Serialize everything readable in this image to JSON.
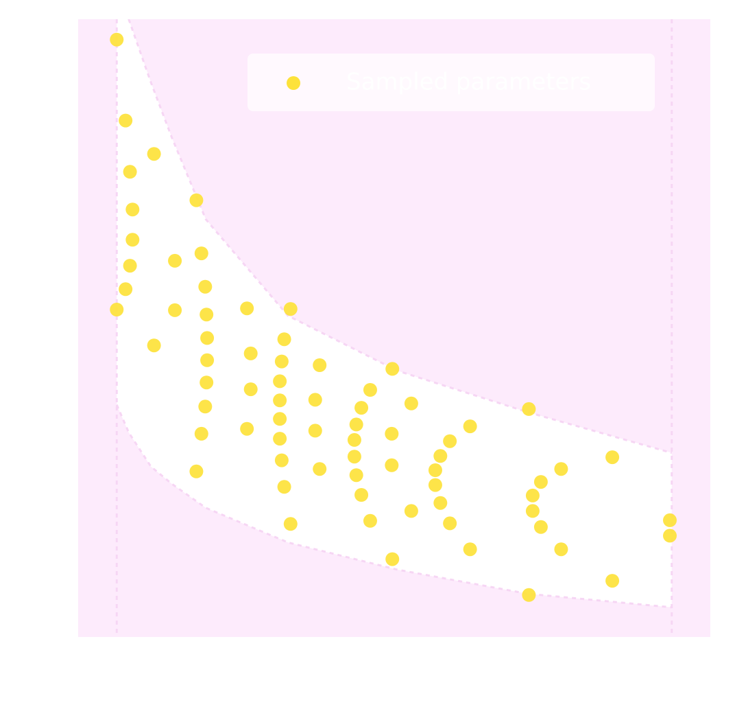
{
  "chart_data": {
    "type": "scatter",
    "xlim": [
      0,
      1
    ],
    "ylim": [
      0,
      1
    ],
    "xticks": [],
    "yticks": [],
    "grid": false,
    "background": "#fdebfc",
    "legend": "upper right",
    "band": {
      "color": "#ffffff",
      "edge_color": "#f6d6f4",
      "x": [
        0.061,
        0.08,
        0.115,
        0.148,
        0.202,
        0.332,
        0.505,
        0.711,
        0.939
      ],
      "upper": [
        1.064,
        1.0,
        0.898,
        0.809,
        0.676,
        0.52,
        0.431,
        0.364,
        0.298
      ],
      "lower": [
        0.376,
        0.331,
        0.276,
        0.248,
        0.209,
        0.153,
        0.109,
        0.07,
        0.048
      ]
    },
    "vlines": [
      0.061,
      0.939
    ],
    "series": [
      {
        "name": "Sampled parameters",
        "color": "#fde23a",
        "x": [
          0.061,
          0.075,
          0.082,
          0.086,
          0.086,
          0.082,
          0.075,
          0.061,
          0.12,
          0.12,
          0.153,
          0.153,
          0.187,
          0.195,
          0.201,
          0.203,
          0.204,
          0.204,
          0.203,
          0.201,
          0.195,
          0.187,
          0.267,
          0.273,
          0.273,
          0.267,
          0.336,
          0.326,
          0.322,
          0.319,
          0.319,
          0.319,
          0.319,
          0.322,
          0.326,
          0.336,
          0.382,
          0.375,
          0.375,
          0.382,
          0.497,
          0.462,
          0.448,
          0.44,
          0.437,
          0.437,
          0.44,
          0.448,
          0.462,
          0.497,
          0.527,
          0.496,
          0.496,
          0.527,
          0.62,
          0.588,
          0.573,
          0.565,
          0.565,
          0.573,
          0.588,
          0.62,
          0.713,
          0.732,
          0.719,
          0.719,
          0.732,
          0.764,
          0.764,
          0.713,
          0.845,
          0.845,
          0.936,
          0.936
        ],
        "y": [
          0.967,
          0.836,
          0.753,
          0.692,
          0.643,
          0.601,
          0.563,
          0.53,
          0.782,
          0.472,
          0.609,
          0.529,
          0.707,
          0.621,
          0.567,
          0.522,
          0.484,
          0.448,
          0.412,
          0.373,
          0.329,
          0.268,
          0.532,
          0.459,
          0.401,
          0.337,
          0.531,
          0.482,
          0.446,
          0.414,
          0.383,
          0.353,
          0.321,
          0.286,
          0.243,
          0.183,
          0.44,
          0.384,
          0.334,
          0.272,
          0.434,
          0.4,
          0.371,
          0.344,
          0.319,
          0.292,
          0.262,
          0.23,
          0.188,
          0.126,
          0.378,
          0.329,
          0.278,
          0.204,
          0.341,
          0.317,
          0.293,
          0.27,
          0.246,
          0.217,
          0.184,
          0.142,
          0.369,
          0.251,
          0.229,
          0.204,
          0.178,
          0.272,
          0.142,
          0.068,
          0.291,
          0.091,
          0.189,
          0.164
        ]
      }
    ]
  }
}
